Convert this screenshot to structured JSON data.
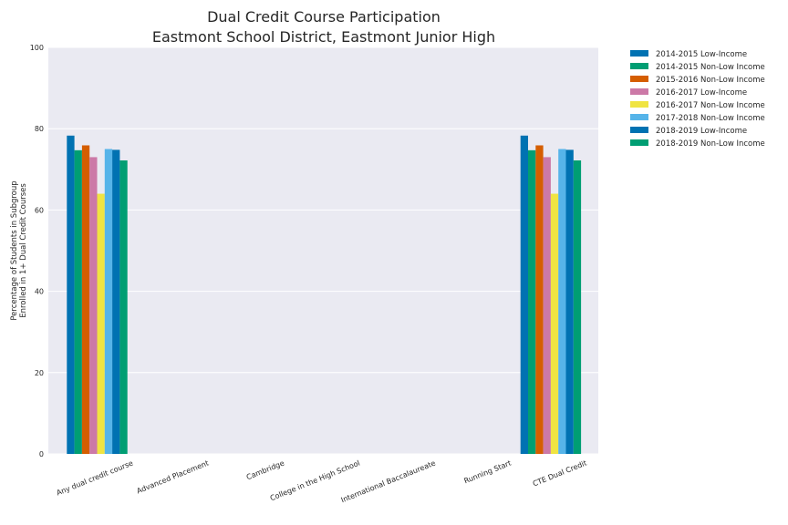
{
  "chart_data": {
    "type": "bar",
    "title_line1": "Dual Credit Course Participation",
    "title_line2": "Eastmont School District, Eastmont Junior High",
    "xlabel": "",
    "ylabel_line1": "Percentage of Students in Subgroup",
    "ylabel_line2": "Enrolled in 1+ Dual Credit Courses",
    "ylim": [
      0,
      100
    ],
    "yticks": [
      0,
      20,
      40,
      60,
      80,
      100
    ],
    "grid": true,
    "legend_position": "outside top-right",
    "categories": [
      "Any dual credit course",
      "Advanced Placement",
      "Cambridge",
      "College in the High School",
      "International Baccalaureate",
      "Running Start",
      "CTE Dual Credit"
    ],
    "series": [
      {
        "name": "2014-2015 Low-Income",
        "color": "#0072B2",
        "values": [
          78.3,
          null,
          null,
          null,
          null,
          null,
          78.3
        ]
      },
      {
        "name": "2014-2015 Non-Low Income",
        "color": "#009E73",
        "values": [
          74.7,
          null,
          null,
          null,
          null,
          null,
          74.7
        ]
      },
      {
        "name": "2015-2016 Non-Low Income",
        "color": "#D55E00",
        "values": [
          75.9,
          null,
          null,
          null,
          null,
          null,
          75.9
        ]
      },
      {
        "name": "2016-2017 Low-Income",
        "color": "#CC79A7",
        "values": [
          73.0,
          null,
          null,
          null,
          null,
          null,
          73.0
        ]
      },
      {
        "name": "2016-2017 Non-Low Income",
        "color": "#F0E442",
        "values": [
          64.0,
          null,
          null,
          null,
          null,
          null,
          64.0
        ]
      },
      {
        "name": "2017-2018 Non-Low Income",
        "color": "#56B4E9",
        "values": [
          75.0,
          null,
          null,
          null,
          null,
          null,
          75.0
        ]
      },
      {
        "name": "2018-2019 Low-Income",
        "color": "#0072B2",
        "values": [
          74.8,
          null,
          null,
          null,
          null,
          null,
          74.8
        ]
      },
      {
        "name": "2018-2019 Non-Low Income",
        "color": "#009E73",
        "values": [
          72.2,
          null,
          null,
          null,
          null,
          null,
          72.2
        ]
      }
    ]
  }
}
